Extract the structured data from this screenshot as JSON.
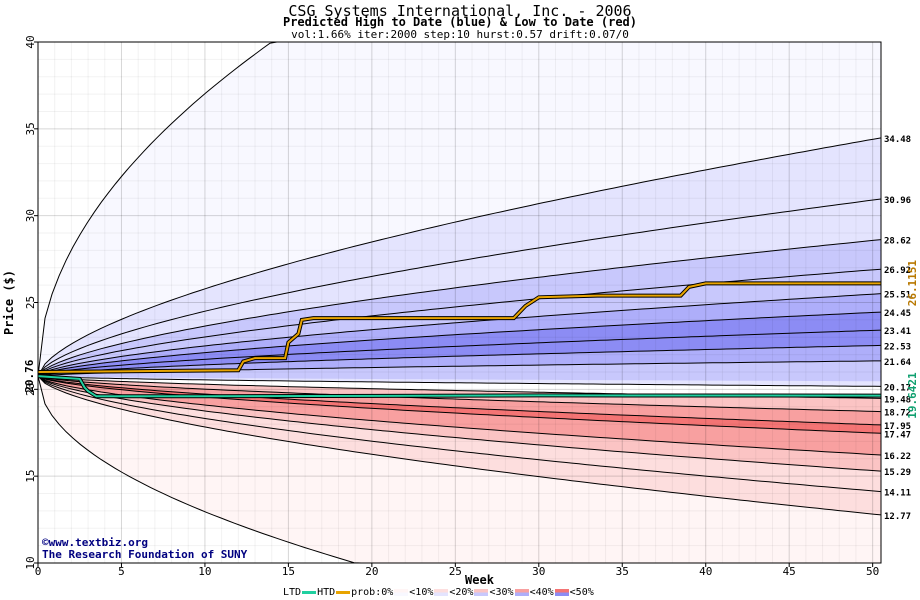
{
  "chart_data": {
    "type": "area",
    "title": "CSG Systems International, Inc. - 2006",
    "subtitle": "Predicted High to Date (blue) &  Low to Date (red)",
    "params": "vol:1.66% iter:2000 step:10 hurst:0.57 drift:0.07/0",
    "xlabel": "Week",
    "ylabel": "Price ($)",
    "xlim": [
      0,
      50.5
    ],
    "ylim": [
      10,
      40
    ],
    "x_ticks": [
      0,
      5,
      10,
      15,
      20,
      25,
      30,
      35,
      40,
      45,
      50
    ],
    "y_ticks": [
      10,
      15,
      20,
      25,
      30,
      35,
      40
    ],
    "start_label": "20.76",
    "start_price": 20.76,
    "high_band_ends": [
      34.48,
      30.96,
      28.62,
      26.92,
      25.51,
      24.45,
      23.41,
      22.53,
      21.64,
      20.17
    ],
    "low_band_ends": [
      19.48,
      18.72,
      17.95,
      17.47,
      16.22,
      15.29,
      14.11,
      12.77
    ],
    "outer_envelope": {
      "upper_reaches_40_at_week": 14,
      "lower_reaches_10_at_week": 19
    },
    "final_labels": {
      "high": "26.1151",
      "low": "19.6421"
    },
    "high_to_date": {
      "color": "#e8a400",
      "points": [
        [
          0,
          21.0
        ],
        [
          12,
          21.1
        ],
        [
          12.3,
          21.6
        ],
        [
          13,
          21.8
        ],
        [
          14.8,
          21.8
        ],
        [
          15,
          22.7
        ],
        [
          15.6,
          23.2
        ],
        [
          15.8,
          24.0
        ],
        [
          16.5,
          24.1
        ],
        [
          22,
          24.1
        ],
        [
          28.5,
          24.1
        ],
        [
          29.2,
          24.8
        ],
        [
          30,
          25.3
        ],
        [
          33.5,
          25.4
        ],
        [
          38.5,
          25.4
        ],
        [
          39,
          25.9
        ],
        [
          40,
          26.1
        ],
        [
          50.5,
          26.1
        ]
      ]
    },
    "low_to_date": {
      "color": "#20d0a0",
      "points": [
        [
          0,
          20.76
        ],
        [
          2.5,
          20.6
        ],
        [
          2.8,
          20.1
        ],
        [
          3,
          19.9
        ],
        [
          3.5,
          19.6
        ],
        [
          10,
          19.6
        ],
        [
          30,
          19.65
        ],
        [
          50.5,
          19.64
        ]
      ]
    },
    "credit": [
      "www.textbiz.org",
      "The Research Foundation of SUNY"
    ],
    "legend": {
      "ltd": "LTD",
      "htd": "HTD",
      "prob": "prob:0%",
      "items": [
        "<10%",
        "<20%",
        "<30%",
        "<40%",
        "<50%"
      ]
    },
    "colors": {
      "ltd": "#20d0a0",
      "htd": "#e8a400",
      "prob_blue": [
        "#f8f8ff",
        "#e4e4fe",
        "#c8c8fc",
        "#aeaefa",
        "#8c8cf4"
      ],
      "prob_red": [
        "#fff5f5",
        "#fddede",
        "#fbc4c4",
        "#f8a0a0",
        "#f47474"
      ]
    }
  }
}
